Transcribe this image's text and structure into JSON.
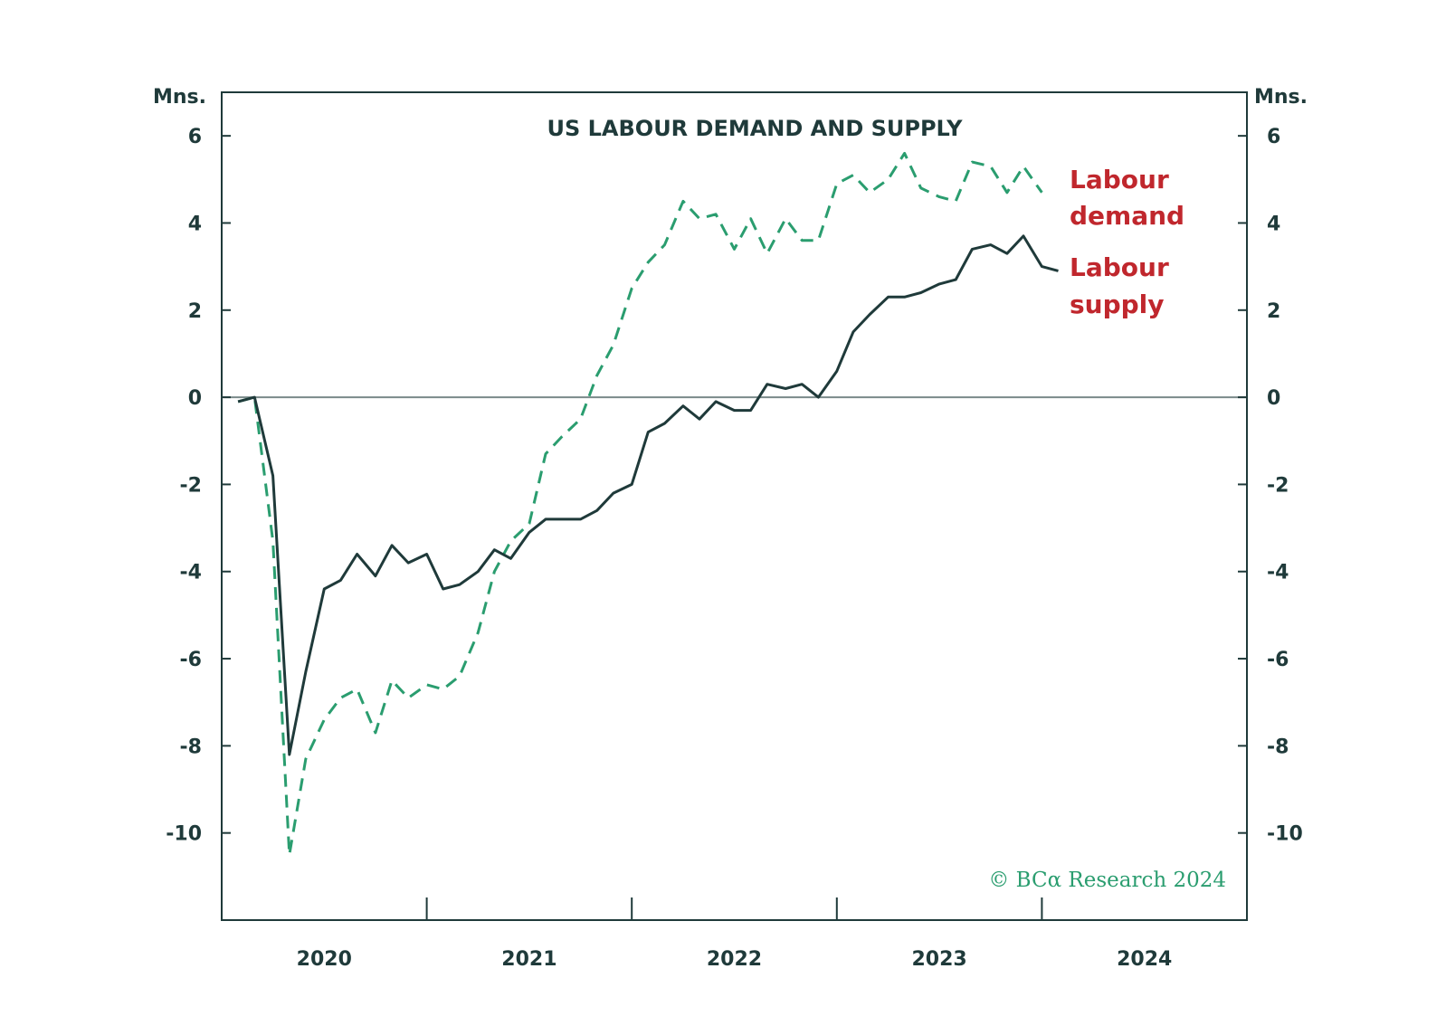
{
  "chart_data": {
    "type": "line",
    "title": "US LABOUR DEMAND AND SUPPLY",
    "y_unit_left": "Mns.",
    "y_unit_right": "Mns.",
    "ylim": [
      -12,
      7
    ],
    "y_ticks": [
      6,
      4,
      2,
      0,
      -2,
      -4,
      -6,
      -8,
      -10
    ],
    "y_tick_labels": [
      "6",
      "4",
      "2",
      "0",
      "-2",
      "-4",
      "-6",
      "-8",
      "-10"
    ],
    "x_tick_labels": [
      "2020",
      "2021",
      "2022",
      "2023",
      "2024"
    ],
    "x_range_years": [
      2019.92,
      2024.92
    ],
    "x_ticks": [
      2020.92,
      2021.92,
      2022.92,
      2023.92
    ],
    "grid": false,
    "zero_line": true,
    "credit": "© BCα Research 2024",
    "series": [
      {
        "name": "Labour demand",
        "color": "#2a9d6f",
        "dashed": true,
        "values": [
          [
            2020.0,
            -0.1
          ],
          [
            2020.08,
            0.0
          ],
          [
            2020.17,
            -3.3
          ],
          [
            2020.25,
            -10.5
          ],
          [
            2020.33,
            -8.3
          ],
          [
            2020.42,
            -7.4
          ],
          [
            2020.5,
            -6.9
          ],
          [
            2020.58,
            -6.7
          ],
          [
            2020.67,
            -7.7
          ],
          [
            2020.75,
            -6.5
          ],
          [
            2020.83,
            -6.9
          ],
          [
            2020.92,
            -6.6
          ],
          [
            2021.0,
            -6.7
          ],
          [
            2021.08,
            -6.4
          ],
          [
            2021.17,
            -5.4
          ],
          [
            2021.25,
            -4.0
          ],
          [
            2021.33,
            -3.3
          ],
          [
            2021.42,
            -2.9
          ],
          [
            2021.5,
            -1.3
          ],
          [
            2021.58,
            -0.9
          ],
          [
            2021.67,
            -0.5
          ],
          [
            2021.75,
            0.5
          ],
          [
            2021.83,
            1.2
          ],
          [
            2021.92,
            2.5
          ],
          [
            2022.0,
            3.1
          ],
          [
            2022.08,
            3.5
          ],
          [
            2022.17,
            4.5
          ],
          [
            2022.25,
            4.1
          ],
          [
            2022.33,
            4.2
          ],
          [
            2022.42,
            3.4
          ],
          [
            2022.5,
            4.1
          ],
          [
            2022.58,
            3.3
          ],
          [
            2022.67,
            4.1
          ],
          [
            2022.75,
            3.6
          ],
          [
            2022.83,
            3.6
          ],
          [
            2022.92,
            4.9
          ],
          [
            2023.0,
            5.1
          ],
          [
            2023.08,
            4.7
          ],
          [
            2023.17,
            5.0
          ],
          [
            2023.25,
            5.6
          ],
          [
            2023.33,
            4.8
          ],
          [
            2023.42,
            4.6
          ],
          [
            2023.5,
            4.5
          ],
          [
            2023.58,
            5.4
          ],
          [
            2023.67,
            5.3
          ],
          [
            2023.75,
            4.7
          ],
          [
            2023.83,
            5.3
          ],
          [
            2023.92,
            4.7
          ]
        ]
      },
      {
        "name": "Labour supply",
        "color": "#1f3a3a",
        "dashed": false,
        "values": [
          [
            2020.0,
            -0.1
          ],
          [
            2020.08,
            0.0
          ],
          [
            2020.17,
            -1.8
          ],
          [
            2020.25,
            -8.2
          ],
          [
            2020.33,
            -6.3
          ],
          [
            2020.42,
            -4.4
          ],
          [
            2020.5,
            -4.2
          ],
          [
            2020.58,
            -3.6
          ],
          [
            2020.67,
            -4.1
          ],
          [
            2020.75,
            -3.4
          ],
          [
            2020.83,
            -3.8
          ],
          [
            2020.92,
            -3.6
          ],
          [
            2021.0,
            -4.4
          ],
          [
            2021.08,
            -4.3
          ],
          [
            2021.17,
            -4.0
          ],
          [
            2021.25,
            -3.5
          ],
          [
            2021.33,
            -3.7
          ],
          [
            2021.42,
            -3.1
          ],
          [
            2021.5,
            -2.8
          ],
          [
            2021.58,
            -2.8
          ],
          [
            2021.67,
            -2.8
          ],
          [
            2021.75,
            -2.6
          ],
          [
            2021.83,
            -2.2
          ],
          [
            2021.92,
            -2.0
          ],
          [
            2022.0,
            -0.8
          ],
          [
            2022.08,
            -0.6
          ],
          [
            2022.17,
            -0.2
          ],
          [
            2022.25,
            -0.5
          ],
          [
            2022.33,
            -0.1
          ],
          [
            2022.42,
            -0.3
          ],
          [
            2022.5,
            -0.3
          ],
          [
            2022.58,
            0.3
          ],
          [
            2022.67,
            0.2
          ],
          [
            2022.75,
            0.3
          ],
          [
            2022.83,
            0.0
          ],
          [
            2022.92,
            0.6
          ],
          [
            2023.0,
            1.5
          ],
          [
            2023.08,
            1.9
          ],
          [
            2023.17,
            2.3
          ],
          [
            2023.25,
            2.3
          ],
          [
            2023.33,
            2.4
          ],
          [
            2023.42,
            2.6
          ],
          [
            2023.5,
            2.7
          ],
          [
            2023.58,
            3.4
          ],
          [
            2023.67,
            3.5
          ],
          [
            2023.75,
            3.3
          ],
          [
            2023.83,
            3.7
          ],
          [
            2023.92,
            3.0
          ],
          [
            2024.0,
            2.9
          ]
        ]
      }
    ],
    "series_labels": [
      {
        "lines": [
          "Labour",
          "demand"
        ],
        "color": "#c0272d"
      },
      {
        "lines": [
          "Labour",
          "supply"
        ],
        "color": "#c0272d"
      }
    ]
  },
  "colors": {
    "axis": "#1f3a3a",
    "zero_line": "#7a8a8a",
    "credit": "#2a9d6f"
  }
}
